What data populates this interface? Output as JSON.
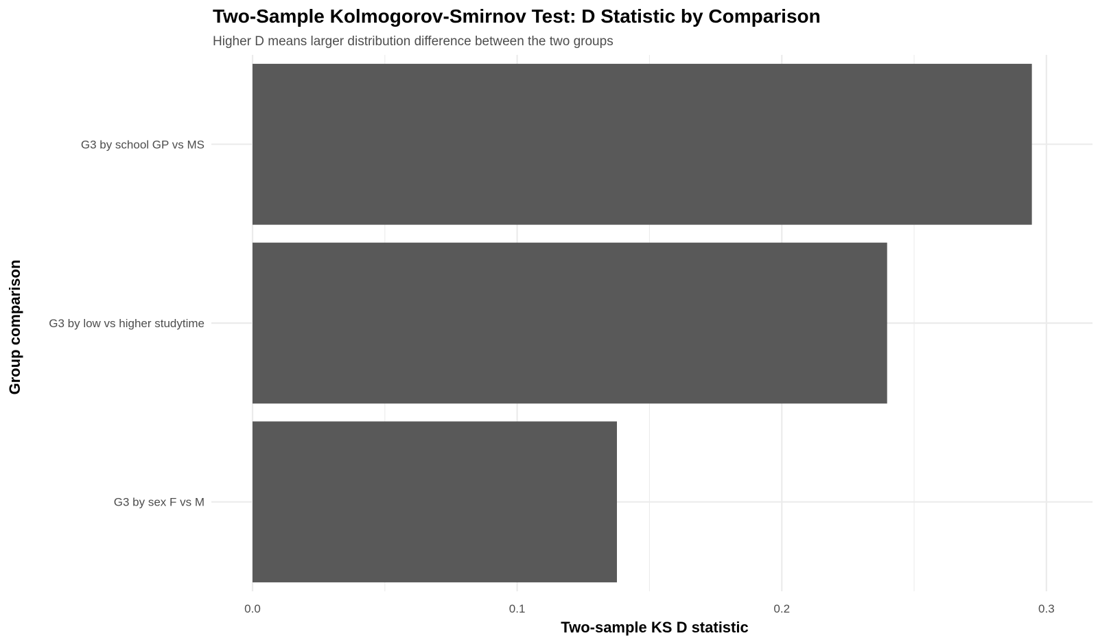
{
  "chart_data": {
    "type": "bar",
    "orientation": "horizontal",
    "title": "Two-Sample Kolmogorov-Smirnov Test: D Statistic by Comparison",
    "subtitle": "Higher D means larger distribution difference between the two groups",
    "xlabel": "Two-sample KS D statistic",
    "ylabel": "Group comparison",
    "categories": [
      "G3 by school GP vs MS",
      "G3 by low vs higher studytime",
      "G3 by sex F vs M"
    ],
    "values": [
      0.2945,
      0.2398,
      0.1377
    ],
    "x_ticks": [
      "0.0",
      "0.1",
      "0.2",
      "0.3"
    ],
    "x_tick_values": [
      0,
      0.1,
      0.2,
      0.3
    ],
    "xlim": [
      0,
      0.3086
    ],
    "grid": true,
    "legend": "none",
    "bar_color": "#595959",
    "grid_color": "#ebebeb",
    "background": "#ffffff"
  }
}
